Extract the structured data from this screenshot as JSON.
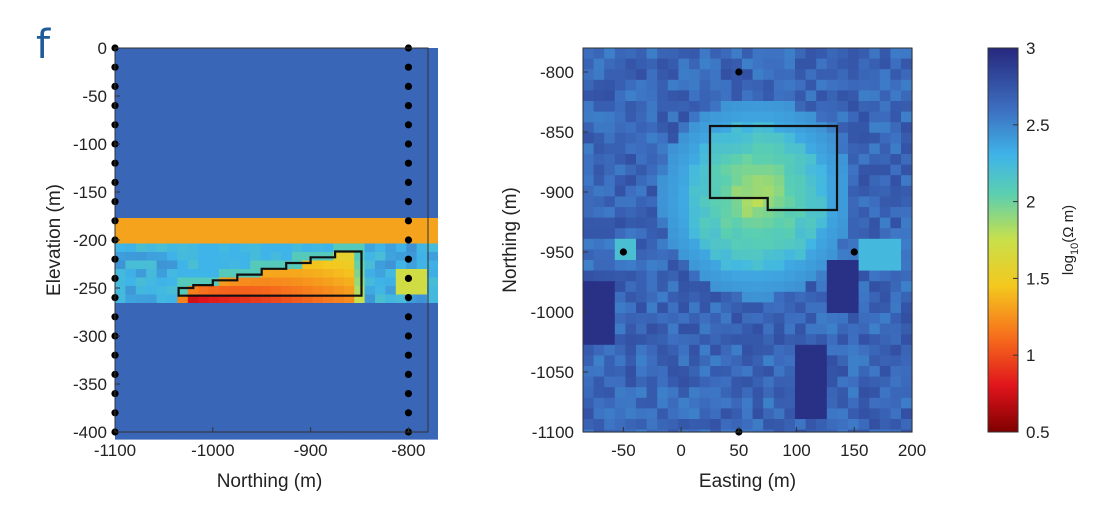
{
  "panel_label": "f",
  "colorbar": {
    "ticks": [
      "3",
      "2.5",
      "2",
      "1.5",
      "1",
      "0.5"
    ],
    "label_main": "log",
    "label_sub": "10",
    "label_tail": "(Ω m)",
    "range": [
      0.5,
      3
    ]
  },
  "chart_data": [
    {
      "type": "heatmap",
      "title": "",
      "xlabel": "Northing (m)",
      "ylabel": "Elevation (m)",
      "xlim": [
        -1100,
        -780
      ],
      "ylim": [
        -400,
        0
      ],
      "xticks": [
        "-1100",
        "-1000",
        "-900",
        "-800"
      ],
      "yticks": [
        "0",
        "-50",
        "-100",
        "-150",
        "-200",
        "-250",
        "-300",
        "-350",
        "-400"
      ],
      "background_value": 2.65,
      "orange_band": {
        "y_from": -178,
        "y_to": -203,
        "value": 1.3
      },
      "anomaly_layer": {
        "y_from": -205,
        "y_to": -262,
        "value": 2.2
      },
      "anomaly_core": {
        "north_from": -1040,
        "north_to": -845,
        "min_value": 0.9
      },
      "outline_polygon": [
        [
          -1035,
          -258
        ],
        [
          -848,
          -258
        ],
        [
          -848,
          -212
        ],
        [
          -875,
          -212
        ],
        [
          -875,
          -218
        ],
        [
          -900,
          -218
        ],
        [
          -900,
          -224
        ],
        [
          -925,
          -224
        ],
        [
          -925,
          -230
        ],
        [
          -950,
          -230
        ],
        [
          -950,
          -236
        ],
        [
          -975,
          -236
        ],
        [
          -975,
          -242
        ],
        [
          -1000,
          -242
        ],
        [
          -1000,
          -247
        ],
        [
          -1020,
          -247
        ],
        [
          -1020,
          -250
        ],
        [
          -1035,
          -250
        ]
      ],
      "boreholes": [
        {
          "northing": -1100,
          "elevations": [
            0,
            -20,
            -40,
            -60,
            -80,
            -100,
            -120,
            -140,
            -160,
            -180,
            -200,
            -220,
            -240,
            -260,
            -280,
            -300,
            -320,
            -340,
            -360,
            -380,
            -400
          ]
        },
        {
          "northing": -800,
          "elevations": [
            0,
            -20,
            -40,
            -60,
            -80,
            -100,
            -120,
            -140,
            -160,
            -180,
            -200,
            -220,
            -240,
            -260,
            -280,
            -300,
            -320,
            -340,
            -360,
            -380,
            -400
          ]
        }
      ]
    },
    {
      "type": "heatmap",
      "title": "",
      "xlabel": "Easting (m)",
      "ylabel": "Northing (m)",
      "xlim": [
        -85,
        200
      ],
      "ylim": [
        -1100,
        -780
      ],
      "xticks": [
        "-50",
        "0",
        "50",
        "100",
        "150",
        "200"
      ],
      "yticks": [
        "-800",
        "-850",
        "-900",
        "-950",
        "-1000",
        "-1050",
        "-1100"
      ],
      "background_value": 2.65,
      "anomaly_center": {
        "easting": 65,
        "northing": -905,
        "min_value": 1.75
      },
      "outline_polygon": [
        [
          25,
          -845
        ],
        [
          135,
          -845
        ],
        [
          135,
          -915
        ],
        [
          75,
          -915
        ],
        [
          75,
          -905
        ],
        [
          25,
          -905
        ]
      ],
      "boreholes": [
        [
          50,
          -800
        ],
        [
          -50,
          -950
        ],
        [
          150,
          -950
        ],
        [
          50,
          -1100
        ]
      ]
    }
  ]
}
